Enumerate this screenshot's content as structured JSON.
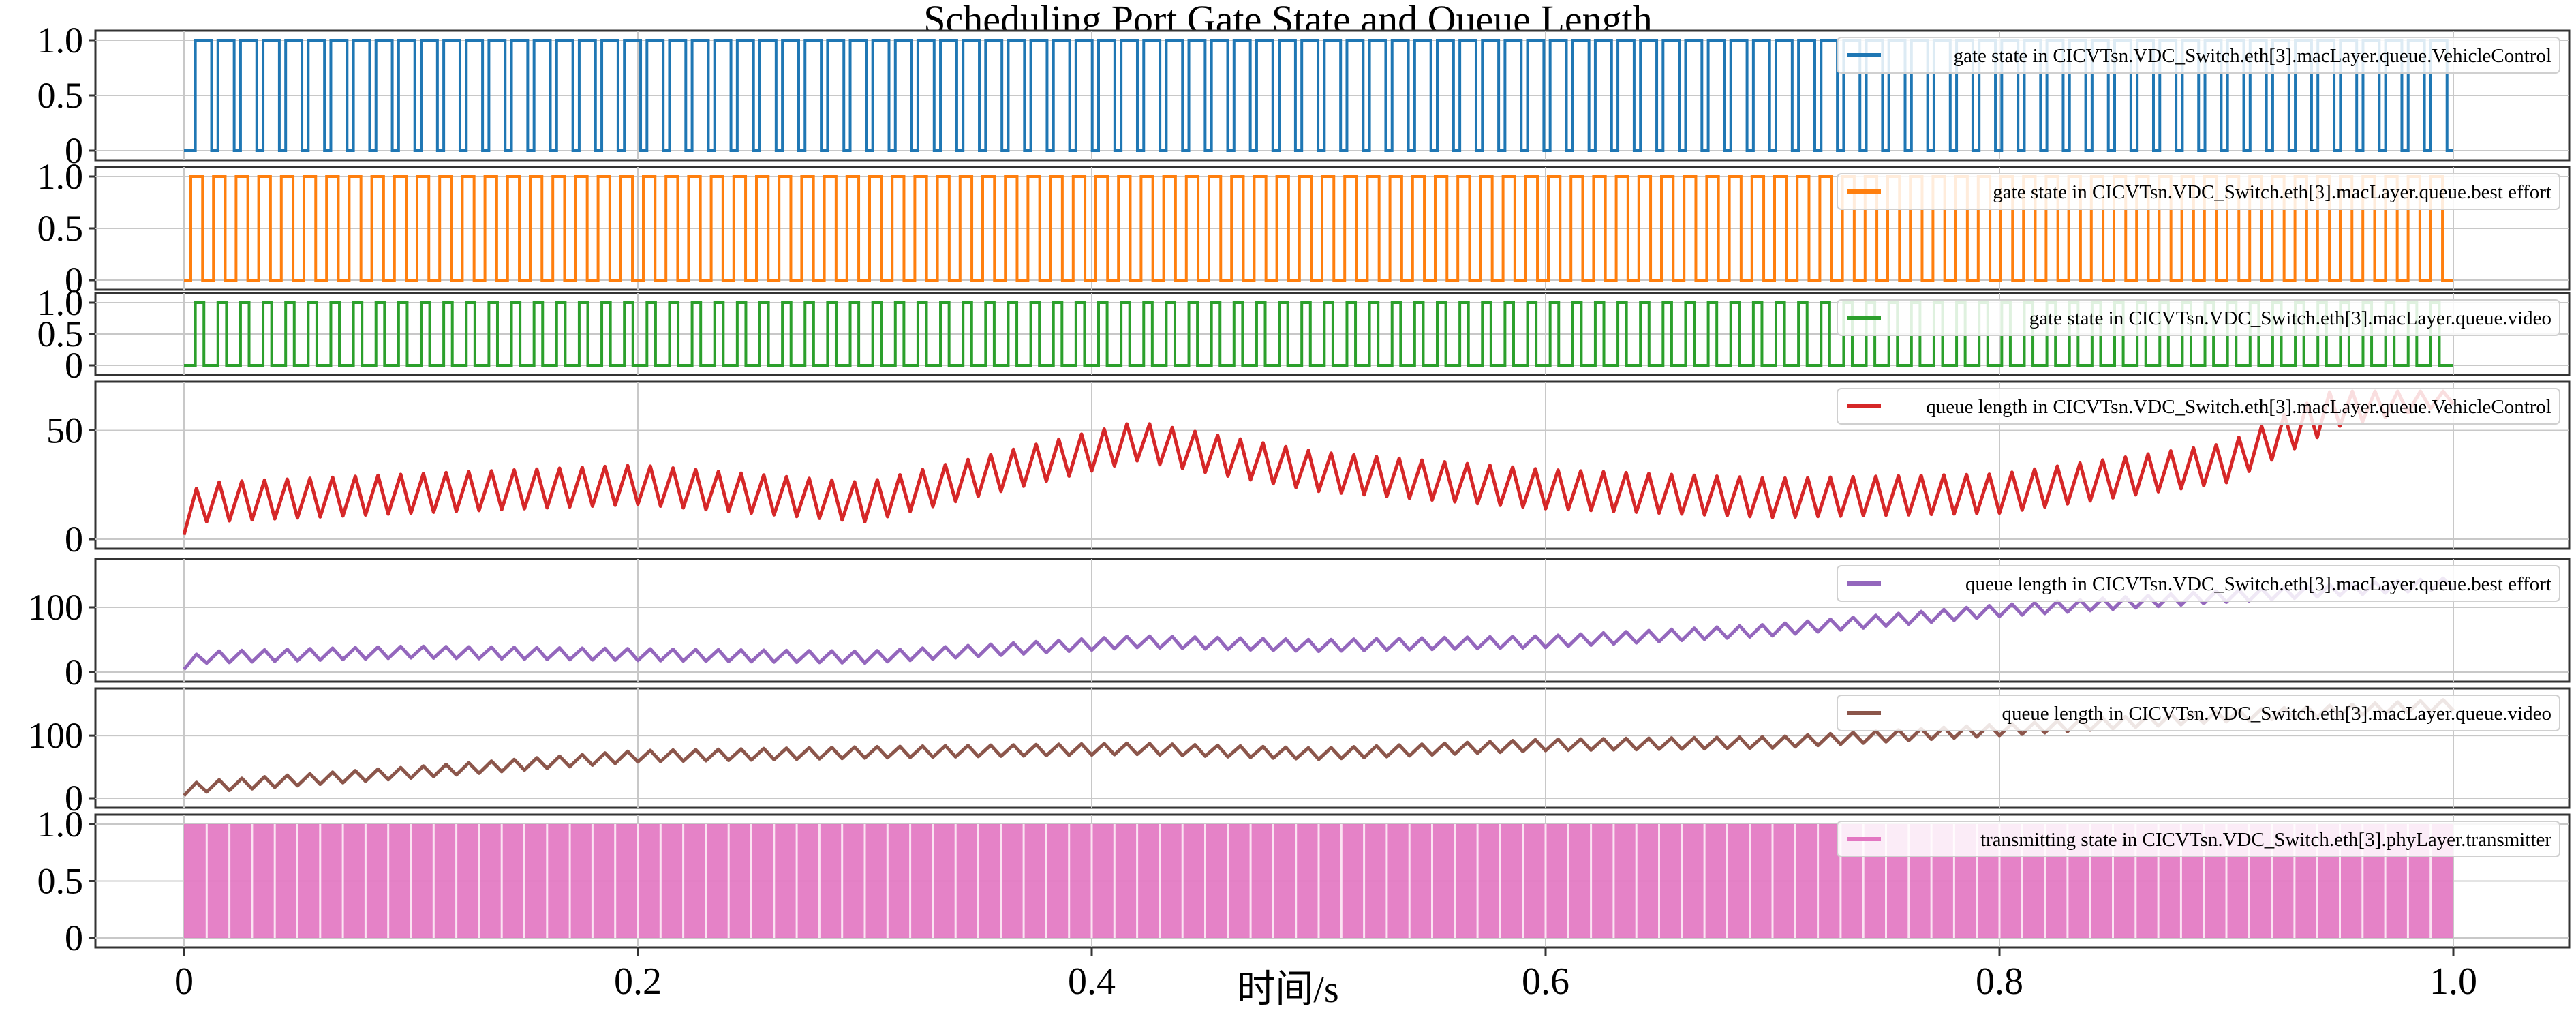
{
  "chart_data": {
    "type": "line",
    "title": "Scheduling Port Gate State and Queue Length",
    "xlabel": "时间/s",
    "xlim": [
      0,
      1.0
    ],
    "x_ticks": [
      "0",
      "0.2",
      "0.4",
      "0.6",
      "0.8",
      "1.0"
    ],
    "x_tick_values": [
      0,
      0.2,
      0.4,
      0.6,
      0.8,
      1.0
    ],
    "grid": true,
    "legend_position": "top-right",
    "subplots": [
      {
        "kind": "gate",
        "name": "gate state in CICVTsn.VDC_Switch.eth[3].macLayer.queue.VehicleControl",
        "color": "#1f77b4",
        "ylim": [
          0,
          1
        ],
        "y_ticks": [
          "0",
          "0.5",
          "1.0"
        ],
        "y_tick_values": [
          0,
          0.5,
          1.0
        ],
        "pulse_count": 100,
        "first_pulse_start": 0.005,
        "duty_cycle": 0.72
      },
      {
        "kind": "gate",
        "name": "gate state in CICVTsn.VDC_Switch.eth[3].macLayer.queue.best effort",
        "color": "#ff7f0e",
        "ylim": [
          0,
          1
        ],
        "y_ticks": [
          "0",
          "0.5",
          "1.0"
        ],
        "y_tick_values": [
          0,
          0.5,
          1.0
        ],
        "pulse_count": 100,
        "first_pulse_start": 0.003,
        "duty_cycle": 0.52
      },
      {
        "kind": "gate",
        "name": "gate state in CICVTsn.VDC_Switch.eth[3].macLayer.queue.video",
        "color": "#2ca02c",
        "ylim": [
          0,
          1
        ],
        "y_ticks": [
          "0",
          "0.5",
          "1.0"
        ],
        "y_tick_values": [
          0,
          0.5,
          1.0
        ],
        "pulse_count": 100,
        "first_pulse_start": 0.005,
        "duty_cycle": 0.38
      },
      {
        "kind": "queue",
        "name": "queue length in CICVTsn.VDC_Switch.eth[3].macLayer.queue.VehicleControl",
        "color": "#d62728",
        "ylim": [
          0,
          68
        ],
        "y_ticks": [
          "0",
          "50"
        ],
        "y_tick_values": [
          0,
          50
        ],
        "sawtooth_count": 100,
        "sawtooth_drop": 18,
        "baseline": {
          "x": [
            0,
            0.01,
            0.1,
            0.2,
            0.3,
            0.42,
            0.5,
            0.6,
            0.7,
            0.8,
            0.9,
            0.95,
            1.0
          ],
          "y": [
            2,
            8,
            12,
            16,
            8,
            36,
            22,
            14,
            10,
            12,
            26,
            52,
            62
          ]
        }
      },
      {
        "kind": "queue",
        "name": "queue length in CICVTsn.VDC_Switch.eth[3].macLayer.queue.best effort",
        "color": "#9467bd",
        "ylim": [
          0,
          160
        ],
        "y_ticks": [
          "0",
          "100"
        ],
        "y_tick_values": [
          0,
          100
        ],
        "sawtooth_count": 100,
        "sawtooth_drop": 18,
        "baseline": {
          "x": [
            0,
            0.01,
            0.1,
            0.2,
            0.3,
            0.42,
            0.5,
            0.6,
            0.7,
            0.8,
            0.9,
            1.0
          ],
          "y": [
            4,
            14,
            22,
            18,
            14,
            38,
            32,
            38,
            56,
            86,
            108,
            128
          ]
        }
      },
      {
        "kind": "queue",
        "name": "queue length in CICVTsn.VDC_Switch.eth[3].macLayer.queue.video",
        "color": "#8c564b",
        "ylim": [
          0,
          160
        ],
        "y_ticks": [
          "0",
          "100"
        ],
        "y_tick_values": [
          0,
          100
        ],
        "sawtooth_count": 100,
        "sawtooth_drop": 18,
        "baseline": {
          "x": [
            0,
            0.01,
            0.1,
            0.2,
            0.3,
            0.42,
            0.5,
            0.6,
            0.7,
            0.8,
            0.9,
            1.0
          ],
          "y": [
            4,
            10,
            32,
            58,
            64,
            70,
            62,
            76,
            80,
            100,
            122,
            140
          ]
        }
      },
      {
        "kind": "transmit",
        "name": "transmitting state in CICVTsn.VDC_Switch.eth[3].phyLayer.transmitter",
        "color": "#e377c2",
        "ylim": [
          0,
          1
        ],
        "y_ticks": [
          "0",
          "0.5",
          "1.0"
        ],
        "y_tick_values": [
          0,
          0.5,
          1.0
        ],
        "pulse_count": 100
      }
    ]
  }
}
